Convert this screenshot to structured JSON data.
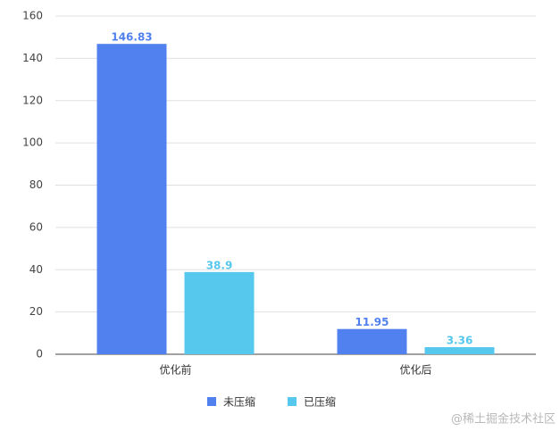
{
  "chart_data": {
    "type": "bar",
    "categories": [
      "优化前",
      "优化后"
    ],
    "series": [
      {
        "name": "未压缩",
        "color": "#5081ef",
        "values": [
          146.83,
          11.95
        ]
      },
      {
        "name": "已压缩",
        "color": "#56c8ee",
        "values": [
          38.9,
          3.36
        ]
      }
    ],
    "ylim": [
      0,
      160
    ],
    "yticks": [
      0,
      20,
      40,
      60,
      80,
      100,
      120,
      140,
      160
    ],
    "grid": true,
    "legend": "bottom",
    "watermark": "@稀土掘金技术社区"
  }
}
